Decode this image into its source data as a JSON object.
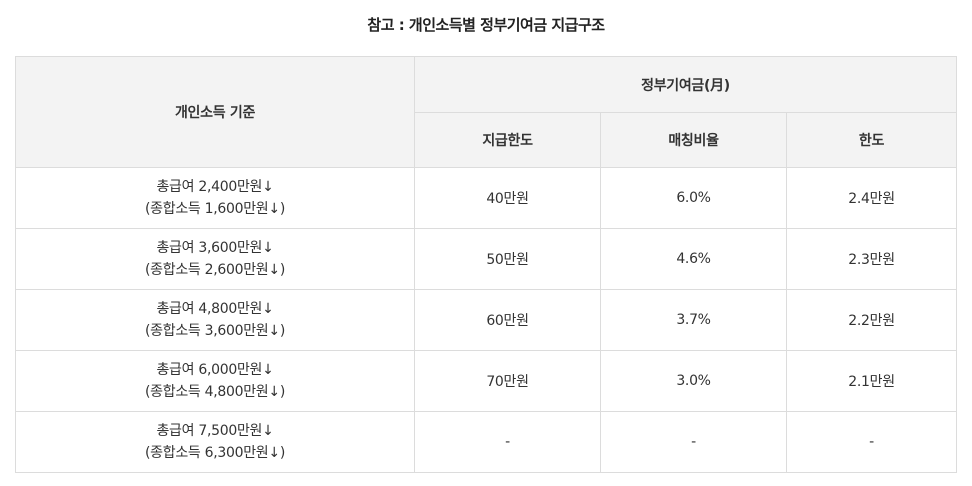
{
  "title": "참고 : 개인소득별 정부기여금 지급구조",
  "header": {
    "criteria": "개인소득 기준",
    "group": "정부기여금(月)",
    "limit": "지급한도",
    "rate": "매칭비율",
    "cap": "한도"
  },
  "rows": [
    {
      "line1": "총급여 2,400만원↓",
      "line2": "(종합소득 1,600만원↓)",
      "limit": "40만원",
      "rate": "6.0%",
      "cap": "2.4만원"
    },
    {
      "line1": "총급여 3,600만원↓",
      "line2": "(종합소득 2,600만원↓)",
      "limit": "50만원",
      "rate": "4.6%",
      "cap": "2.3만원"
    },
    {
      "line1": "총급여 4,800만원↓",
      "line2": "(종합소득 3,600만원↓)",
      "limit": "60만원",
      "rate": "3.7%",
      "cap": "2.2만원"
    },
    {
      "line1": "총급여 6,000만원↓",
      "line2": "(종합소득 4,800만원↓)",
      "limit": "70만원",
      "rate": "3.0%",
      "cap": "2.1만원"
    },
    {
      "line1": "총급여 7,500만원↓",
      "line2": "(종합소득 6,300만원↓)",
      "limit": "-",
      "rate": "-",
      "cap": "-"
    }
  ]
}
